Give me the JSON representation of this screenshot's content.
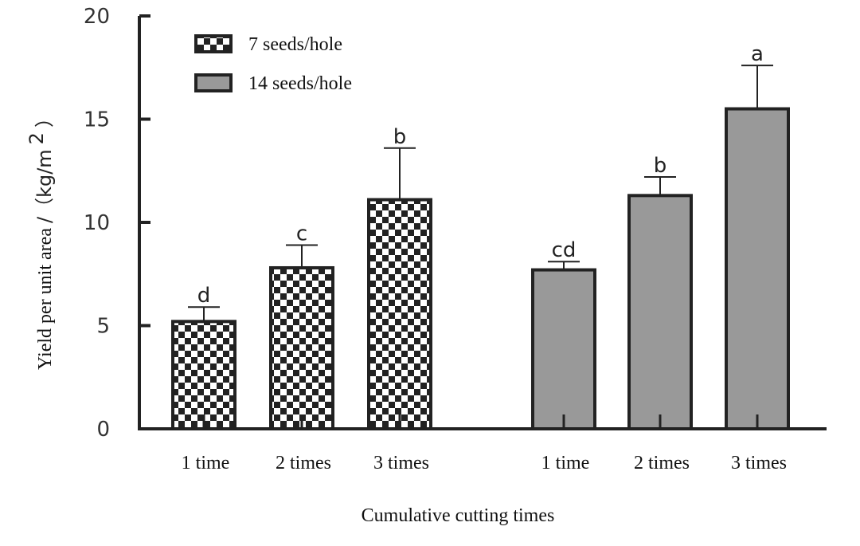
{
  "chart_data": {
    "type": "bar",
    "xlabel": "Cumulative cutting times",
    "ylabel_main": "Yield per unit area",
    "ylabel_unit": "/（kg/m",
    "ylabel_sup": "2",
    "ylabel_close": "）",
    "ylim": [
      0,
      20
    ],
    "y_ticks": [
      "0",
      "5",
      "10",
      "15",
      "20"
    ],
    "grid": false,
    "legend_position": "top-left",
    "series": [
      {
        "name": "7 seeds/hole",
        "pattern": "checkerboard",
        "categories": [
          "1 time",
          "2 times",
          "3 times"
        ],
        "values": [
          5.2,
          7.8,
          11.1
        ],
        "errors": [
          0.7,
          1.1,
          2.5
        ],
        "letters": [
          "d",
          "c",
          "b"
        ]
      },
      {
        "name": "14 seeds/hole",
        "pattern": "solid",
        "color": "#999999",
        "categories": [
          "1 time",
          "2 times",
          "3 times"
        ],
        "values": [
          7.7,
          11.3,
          15.5
        ],
        "errors": [
          0.4,
          0.9,
          2.1
        ],
        "letters": [
          "cd",
          "b",
          "a"
        ]
      }
    ]
  }
}
